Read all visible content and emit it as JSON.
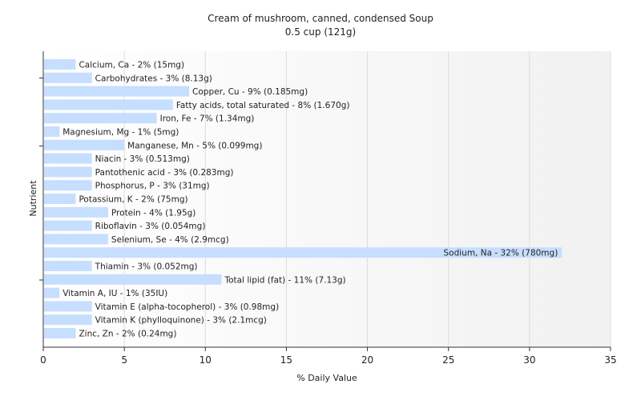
{
  "chart_data": {
    "type": "bar",
    "orientation": "horizontal",
    "title": "Cream of mushroom, canned, condensed Soup",
    "subtitle": "0.5 cup (121g)",
    "xlabel": "% Daily Value",
    "ylabel": "Nutrient",
    "xlim": [
      0,
      35
    ],
    "xticks": [
      0,
      5,
      10,
      15,
      20,
      25,
      30,
      35
    ],
    "grid": true,
    "bar_color": "#c6deff",
    "bars": [
      {
        "label": "Calcium, Ca - 2% (15mg)",
        "value": 2
      },
      {
        "label": "Carbohydrates - 3% (8.13g)",
        "value": 3
      },
      {
        "label": "Copper, Cu - 9% (0.185mg)",
        "value": 9
      },
      {
        "label": "Fatty acids, total saturated - 8% (1.670g)",
        "value": 8
      },
      {
        "label": "Iron, Fe - 7% (1.34mg)",
        "value": 7
      },
      {
        "label": "Magnesium, Mg - 1% (5mg)",
        "value": 1
      },
      {
        "label": "Manganese, Mn - 5% (0.099mg)",
        "value": 5
      },
      {
        "label": "Niacin - 3% (0.513mg)",
        "value": 3
      },
      {
        "label": "Pantothenic acid - 3% (0.283mg)",
        "value": 3
      },
      {
        "label": "Phosphorus, P - 3% (31mg)",
        "value": 3
      },
      {
        "label": "Potassium, K - 2% (75mg)",
        "value": 2
      },
      {
        "label": "Protein - 4% (1.95g)",
        "value": 4
      },
      {
        "label": "Riboflavin - 3% (0.054mg)",
        "value": 3
      },
      {
        "label": "Selenium, Se - 4% (2.9mcg)",
        "value": 4
      },
      {
        "label": "Sodium, Na - 32% (780mg)",
        "value": 32
      },
      {
        "label": "Thiamin - 3% (0.052mg)",
        "value": 3
      },
      {
        "label": "Total lipid (fat) - 11% (7.13g)",
        "value": 11
      },
      {
        "label": "Vitamin A, IU - 1% (35IU)",
        "value": 1
      },
      {
        "label": "Vitamin E (alpha-tocopherol) - 3% (0.98mg)",
        "value": 3
      },
      {
        "label": "Vitamin K (phylloquinone) - 3% (2.1mcg)",
        "value": 3
      },
      {
        "label": "Zinc, Zn - 2% (0.24mg)",
        "value": 2
      }
    ]
  }
}
